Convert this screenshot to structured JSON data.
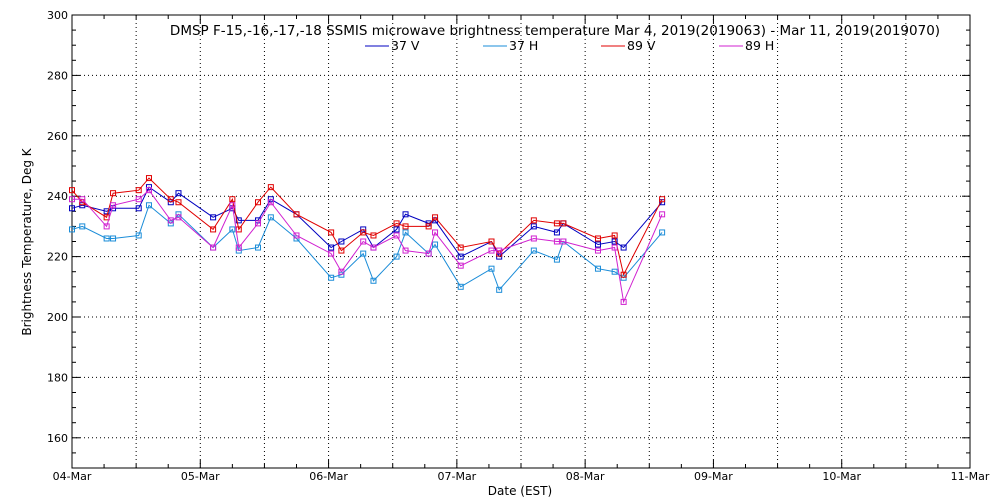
{
  "chart_data": {
    "type": "line",
    "title": "DMSP F-15,-16,-17,-18 SSMIS microwave brightness temperature Mar  4, 2019(2019063) - Mar 11, 2019(2019070)",
    "xlabel": "Date (EST)",
    "ylabel": "Brightness Temperature, Deg K",
    "xlim": [
      0,
      7
    ],
    "ylim": [
      150,
      300
    ],
    "xticks": [
      {
        "value": 0,
        "label": "04-Mar"
      },
      {
        "value": 1,
        "label": "05-Mar"
      },
      {
        "value": 2,
        "label": "06-Mar"
      },
      {
        "value": 3,
        "label": "07-Mar"
      },
      {
        "value": 4,
        "label": "08-Mar"
      },
      {
        "value": 5,
        "label": "09-Mar"
      },
      {
        "value": 6,
        "label": "10-Mar"
      },
      {
        "value": 7,
        "label": "11-Mar"
      }
    ],
    "yticks": [
      160,
      180,
      200,
      220,
      240,
      260,
      280,
      300
    ],
    "grid": true,
    "legend_position": "top-center",
    "series": [
      {
        "name": "37 V",
        "color": "#0000c0",
        "points": [
          [
            0.0,
            236
          ],
          [
            0.08,
            237
          ],
          [
            0.27,
            235
          ],
          [
            0.32,
            236
          ],
          [
            0.52,
            236
          ],
          [
            0.6,
            243
          ],
          [
            0.77,
            238
          ],
          [
            0.83,
            241
          ],
          [
            1.1,
            233
          ],
          [
            1.25,
            236
          ],
          [
            1.3,
            232
          ],
          [
            1.45,
            232
          ],
          [
            1.55,
            239
          ],
          [
            1.75,
            234
          ],
          [
            2.02,
            223
          ],
          [
            2.1,
            225
          ],
          [
            2.27,
            229
          ],
          [
            2.35,
            223
          ],
          [
            2.53,
            229
          ],
          [
            2.6,
            234
          ],
          [
            2.78,
            231
          ],
          [
            2.83,
            232
          ],
          [
            3.03,
            220
          ],
          [
            3.27,
            225
          ],
          [
            3.33,
            220
          ],
          [
            3.6,
            230
          ],
          [
            3.78,
            228
          ],
          [
            3.83,
            231
          ],
          [
            4.1,
            224
          ],
          [
            4.23,
            225
          ],
          [
            4.3,
            223
          ],
          [
            4.6,
            238
          ]
        ]
      },
      {
        "name": "37 H",
        "color": "#1a8cd8",
        "points": [
          [
            0.0,
            229
          ],
          [
            0.08,
            230
          ],
          [
            0.27,
            226
          ],
          [
            0.32,
            226
          ],
          [
            0.52,
            227
          ],
          [
            0.6,
            237
          ],
          [
            0.77,
            231
          ],
          [
            0.83,
            234
          ],
          [
            1.1,
            223
          ],
          [
            1.25,
            229
          ],
          [
            1.3,
            222
          ],
          [
            1.45,
            223
          ],
          [
            1.55,
            233
          ],
          [
            1.75,
            226
          ],
          [
            2.02,
            213
          ],
          [
            2.1,
            214
          ],
          [
            2.27,
            221
          ],
          [
            2.35,
            212
          ],
          [
            2.53,
            220
          ],
          [
            2.6,
            228
          ],
          [
            2.78,
            221
          ],
          [
            2.83,
            224
          ],
          [
            3.03,
            210
          ],
          [
            3.27,
            216
          ],
          [
            3.33,
            209
          ],
          [
            3.6,
            222
          ],
          [
            3.78,
            219
          ],
          [
            3.83,
            225
          ],
          [
            4.1,
            216
          ],
          [
            4.23,
            215
          ],
          [
            4.3,
            213
          ],
          [
            4.6,
            228
          ]
        ]
      },
      {
        "name": "89 V",
        "color": "#e00000",
        "points": [
          [
            0.0,
            242
          ],
          [
            0.08,
            238
          ],
          [
            0.27,
            233
          ],
          [
            0.32,
            241
          ],
          [
            0.52,
            242
          ],
          [
            0.6,
            246
          ],
          [
            0.77,
            239
          ],
          [
            0.83,
            238
          ],
          [
            1.1,
            229
          ],
          [
            1.25,
            239
          ],
          [
            1.3,
            229
          ],
          [
            1.45,
            238
          ],
          [
            1.55,
            243
          ],
          [
            1.75,
            234
          ],
          [
            2.02,
            228
          ],
          [
            2.1,
            222
          ],
          [
            2.27,
            228
          ],
          [
            2.35,
            227
          ],
          [
            2.53,
            231
          ],
          [
            2.6,
            230
          ],
          [
            2.78,
            230
          ],
          [
            2.83,
            233
          ],
          [
            3.03,
            223
          ],
          [
            3.27,
            225
          ],
          [
            3.33,
            221
          ],
          [
            3.6,
            232
          ],
          [
            3.78,
            231
          ],
          [
            3.83,
            231
          ],
          [
            4.1,
            226
          ],
          [
            4.23,
            227
          ],
          [
            4.3,
            214
          ],
          [
            4.6,
            239
          ]
        ]
      },
      {
        "name": "89 H",
        "color": "#d020d0",
        "points": [
          [
            0.0,
            239
          ],
          [
            0.08,
            239
          ],
          [
            0.27,
            230
          ],
          [
            0.32,
            237
          ],
          [
            0.52,
            239
          ],
          [
            0.6,
            242
          ],
          [
            0.77,
            232
          ],
          [
            0.83,
            233
          ],
          [
            1.1,
            223
          ],
          [
            1.25,
            237
          ],
          [
            1.3,
            223
          ],
          [
            1.45,
            231
          ],
          [
            1.55,
            238
          ],
          [
            1.75,
            227
          ],
          [
            2.02,
            221
          ],
          [
            2.1,
            215
          ],
          [
            2.27,
            225
          ],
          [
            2.35,
            223
          ],
          [
            2.53,
            227
          ],
          [
            2.6,
            222
          ],
          [
            2.78,
            221
          ],
          [
            2.83,
            228
          ],
          [
            3.03,
            217
          ],
          [
            3.27,
            222
          ],
          [
            3.33,
            222
          ],
          [
            3.6,
            226
          ],
          [
            3.78,
            225
          ],
          [
            3.83,
            225
          ],
          [
            4.1,
            222
          ],
          [
            4.23,
            223
          ],
          [
            4.3,
            205
          ],
          [
            4.6,
            234
          ]
        ]
      }
    ]
  }
}
